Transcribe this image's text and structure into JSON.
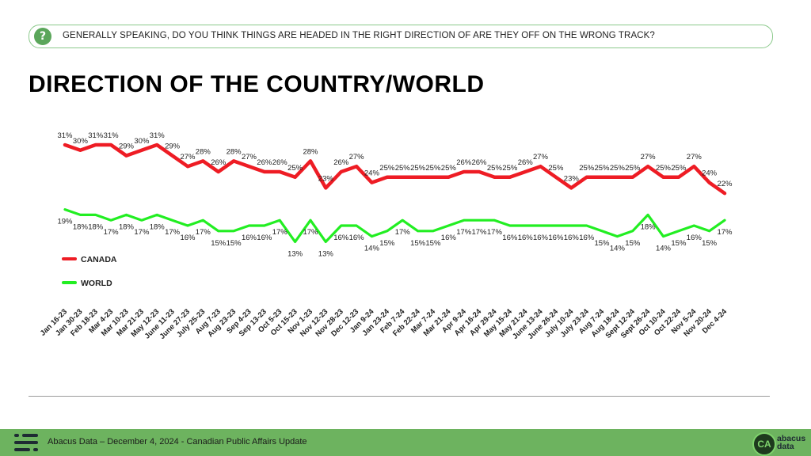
{
  "header": {
    "question_icon": "?",
    "question": "GENERALLY SPEAKING, DO YOU THINK THINGS ARE HEADED IN THE RIGHT DIRECTION OF ARE THEY OFF ON THE WRONG TRACK?",
    "title": "DIRECTION OF THE COUNTRY/WORLD"
  },
  "chart_data": {
    "type": "line",
    "title": "",
    "xlabel": "",
    "ylabel": "",
    "legend_position": "left",
    "grid": false,
    "x": [
      "Jan 16-23",
      "Jan 30-23",
      "Feb 18-23",
      "Mar 4-23",
      "Mar 10-23",
      "Mar 21-23",
      "May 12-23",
      "June 11-23",
      "June 27-23",
      "July 25-23",
      "Aug 7-23",
      "Aug 23-23",
      "Sep 4-23",
      "Sep 13-23",
      "Oct 5-23",
      "Oct 15-23",
      "Nov 1-23",
      "Nov 12-23",
      "Nov 28-23",
      "Dec 12-23",
      "Jan 9-24",
      "Jan 23-24",
      "Feb 7-24",
      "Feb 22-24",
      "Mar 7-24",
      "Mar 21-24",
      "Apr 9-24",
      "Apr 16-24",
      "Apr 29-24",
      "May 15-24",
      "May 21-24",
      "June 13-24",
      "June 26-24",
      "July 10-24",
      "July 23-24",
      "Aug 7-24",
      "Aug 18-24",
      "Sept 12-24",
      "Sept 26-24",
      "Oct 10-24",
      "Oct 22-24",
      "Nov 5-24",
      "Nov 20-24",
      "Dec 4-24"
    ],
    "series": [
      {
        "name": "CANADA",
        "color": "#ee1c24",
        "values": [
          31,
          30,
          31,
          31,
          29,
          30,
          31,
          29,
          27,
          28,
          26,
          28,
          27,
          26,
          26,
          25,
          28,
          23,
          26,
          27,
          24,
          25,
          25,
          25,
          25,
          25,
          26,
          26,
          25,
          25,
          26,
          27,
          25,
          23,
          25,
          25,
          25,
          25,
          27,
          25,
          25,
          27,
          24,
          22
        ],
        "labels": [
          "31%",
          "30%",
          "31%",
          "31%",
          "29%",
          "30%",
          "31%",
          "29%",
          "27%",
          "28%",
          "26%",
          "28%",
          "27%",
          "26%",
          "26%",
          "25%",
          "28%",
          "23%",
          "26%",
          "27%",
          "24%",
          "25%",
          "25%",
          "25%",
          "25%",
          "25%",
          "26%",
          "26%",
          "25%",
          "25%",
          "26%",
          "27%",
          "25%",
          "23%",
          "25%",
          "25%",
          "25%",
          "25%",
          "27%",
          "25%",
          "25%",
          "27%",
          "24%",
          "22%"
        ]
      },
      {
        "name": "WORLD",
        "color": "#22ee22",
        "values": [
          19,
          18,
          18,
          17,
          18,
          17,
          18,
          17,
          16,
          17,
          15,
          15,
          16,
          16,
          17,
          13,
          17,
          13,
          16,
          16,
          14,
          15,
          17,
          15,
          15,
          16,
          17,
          17,
          17,
          16,
          16,
          16,
          16,
          16,
          16,
          15,
          14,
          15,
          18,
          14,
          15,
          16,
          15,
          17
        ],
        "labels": [
          "19%",
          "18%",
          "18%",
          "17%",
          "18%",
          "17%",
          "18%",
          "17%",
          "16%",
          "17%",
          "15%",
          "15%",
          "16%",
          "16%",
          "17%",
          "13%",
          "17%",
          "13%",
          "16%",
          "16%",
          "14%",
          "15%",
          "17%",
          "15%",
          "15%",
          "16%",
          "17%",
          "17%",
          "17%",
          "16%",
          "16%",
          "16%",
          "16%",
          "16%",
          "16%",
          "15%",
          "14%",
          "15%",
          "18%",
          "14%",
          "15%",
          "16%",
          "15%",
          "17%"
        ]
      }
    ]
  },
  "footer": {
    "text": "Abacus Data – December 4, 2024 - Canadian Public Affairs Update",
    "brand_badge": "CA",
    "brand_line1": "abacus",
    "brand_line2": "data"
  }
}
